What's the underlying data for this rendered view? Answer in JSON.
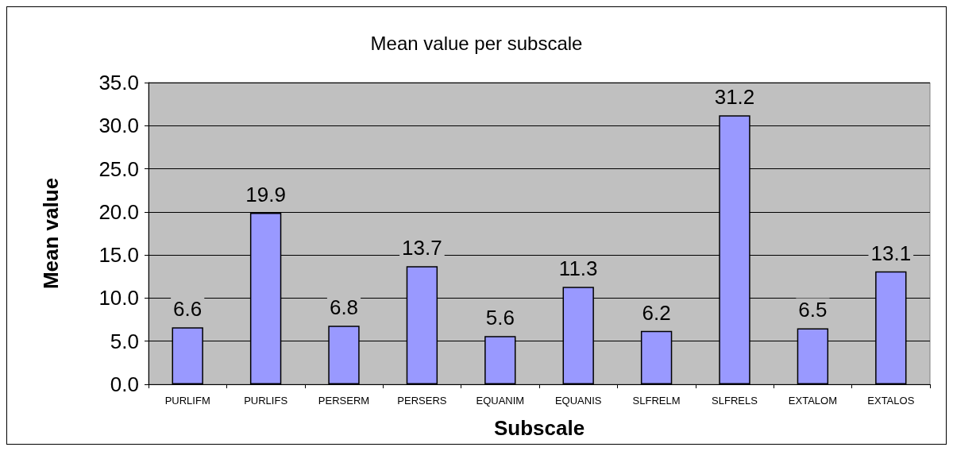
{
  "chart_data": {
    "type": "bar",
    "title": "Mean value per subscale",
    "xlabel": "Subscale",
    "ylabel": "Mean value",
    "categories": [
      "PURLIFM",
      "PURLIFS",
      "PERSERM",
      "PERSERS",
      "EQUANIM",
      "EQUANIS",
      "SLFRELM",
      "SLFRELS",
      "EXTALOM",
      "EXTALOS"
    ],
    "values": [
      6.6,
      19.9,
      6.8,
      13.7,
      5.6,
      11.3,
      6.2,
      31.2,
      6.5,
      13.1
    ],
    "color": "#9999ff",
    "ylim": [
      0,
      35
    ],
    "yticks": [
      {
        "value": 0,
        "label": "0.0"
      },
      {
        "value": 5,
        "label": "5.0"
      },
      {
        "value": 10,
        "label": "10.0"
      },
      {
        "value": 15,
        "label": "15.0"
      },
      {
        "value": 20,
        "label": "20.0"
      },
      {
        "value": 25,
        "label": "25.0"
      },
      {
        "value": 30,
        "label": "30.0"
      },
      {
        "value": 35,
        "label": "35.0"
      }
    ],
    "grid": "y",
    "data_labels": true
  }
}
